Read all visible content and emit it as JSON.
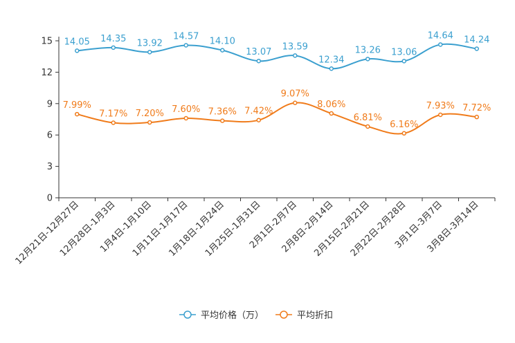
{
  "chart_data": {
    "type": "line",
    "categories": [
      "12月21日-12月27日",
      "12月28日-1月3日",
      "1月4日-1月10日",
      "1月11日-1月17日",
      "1月18日-1月24日",
      "1月25日-1月31日",
      "2月1日-2月7日",
      "2月8日-2月14日",
      "2月15日-2月21日",
      "2月22日-2月28日",
      "3月1日-3月7日",
      "3月8日-3月14日"
    ],
    "series": [
      {
        "name": "平均价格（万）",
        "color": "#3a9fcf",
        "values": [
          14.05,
          14.35,
          13.92,
          14.57,
          14.1,
          13.07,
          13.59,
          12.34,
          13.26,
          13.06,
          14.64,
          14.24
        ],
        "labels": [
          "14.05",
          "14.35",
          "13.92",
          "14.57",
          "14.10",
          "13.07",
          "13.59",
          "12.34",
          "13.26",
          "13.06",
          "14.64",
          "14.24"
        ]
      },
      {
        "name": "平均折扣",
        "color": "#f07b1a",
        "values": [
          7.99,
          7.17,
          7.2,
          7.6,
          7.36,
          7.42,
          9.07,
          8.06,
          6.81,
          6.16,
          7.93,
          7.72
        ],
        "labels": [
          "7.99%",
          "7.17%",
          "7.20%",
          "7.60%",
          "7.36%",
          "7.42%",
          "9.07%",
          "8.06%",
          "6.81%",
          "6.16%",
          "7.93%",
          "7.72%"
        ]
      }
    ],
    "yticks": [
      "0",
      "3",
      "6",
      "9",
      "12",
      "15"
    ],
    "ylim": [
      0,
      15
    ],
    "legend_position": "bottom-center",
    "grid": false
  }
}
